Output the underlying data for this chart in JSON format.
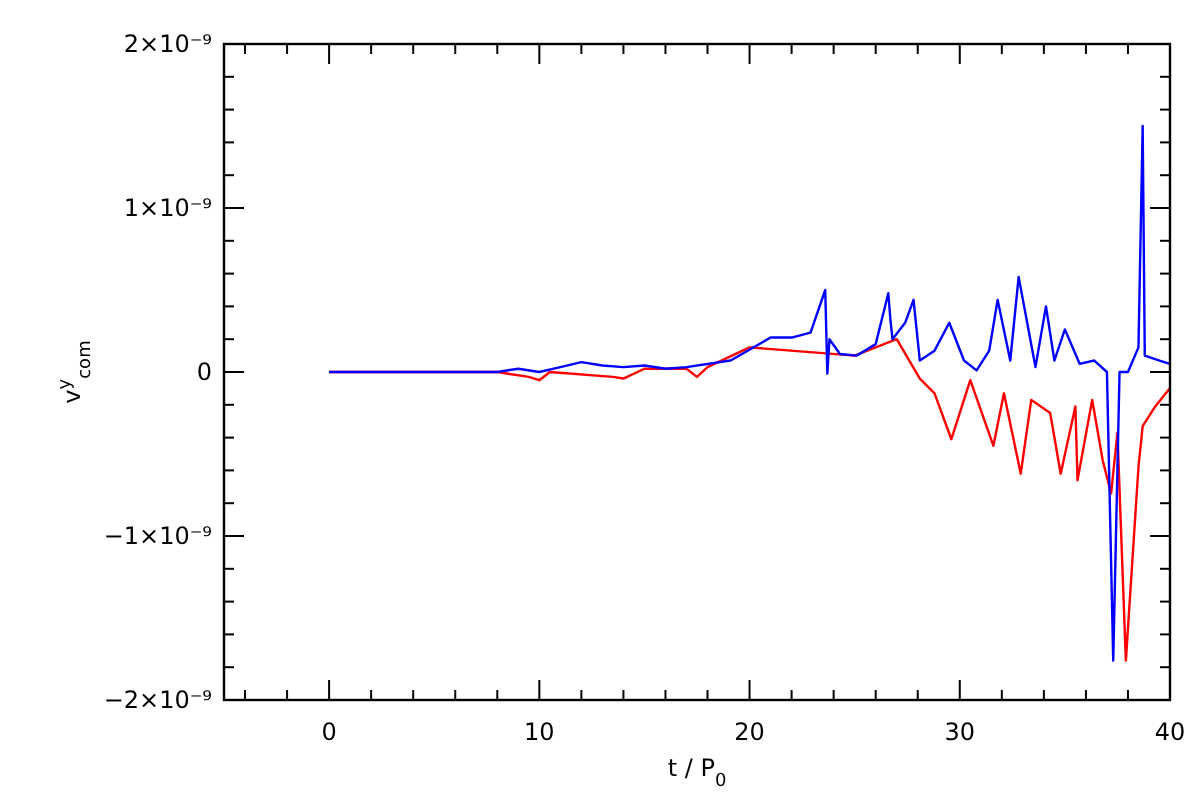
{
  "chart_data": {
    "type": "line",
    "xlabel": "t / P$_{0}$",
    "ylabel": "v$^{y}$$_{com}$",
    "xlim": [
      -5,
      40
    ],
    "ylim": [
      -2e-09,
      2e-09
    ],
    "xticks": [
      {
        "value": -4,
        "label": null
      },
      {
        "value": -2,
        "label": null
      },
      0,
      {
        "value": 2,
        "label": null
      },
      {
        "value": 4,
        "label": null
      },
      {
        "value": 6,
        "label": null
      },
      {
        "value": 8,
        "label": null
      },
      10,
      {
        "value": 12,
        "label": null
      },
      {
        "value": 14,
        "label": null
      },
      {
        "value": 16,
        "label": null
      },
      {
        "value": 18,
        "label": null
      },
      20,
      {
        "value": 22,
        "label": null
      },
      {
        "value": 24,
        "label": null
      },
      {
        "value": 26,
        "label": null
      },
      {
        "value": 28,
        "label": null
      },
      30,
      {
        "value": 32,
        "label": null
      },
      {
        "value": 34,
        "label": null
      },
      {
        "value": 36,
        "label": null
      },
      {
        "value": 38,
        "label": null
      },
      40
    ],
    "yticks": [
      {
        "value": -2e-09,
        "label": "−2×10⁻⁹"
      },
      {
        "value": -1.8e-09,
        "label": null
      },
      {
        "value": -1.6e-09,
        "label": null
      },
      {
        "value": -1.4e-09,
        "label": null
      },
      {
        "value": -1.2e-09,
        "label": null
      },
      {
        "value": -1e-09,
        "label": "−1×10⁻⁹"
      },
      {
        "value": -8e-10,
        "label": null
      },
      {
        "value": -6e-10,
        "label": null
      },
      {
        "value": -4e-10,
        "label": null
      },
      {
        "value": -2e-10,
        "label": null
      },
      0,
      {
        "value": 2e-10,
        "label": null
      },
      {
        "value": 4e-10,
        "label": null
      },
      {
        "value": 6e-10,
        "label": null
      },
      {
        "value": 8e-10,
        "label": null
      },
      {
        "value": 1e-09,
        "label": "1×10⁻⁹"
      },
      {
        "value": 1.2e-09,
        "label": null
      },
      {
        "value": 1.4e-09,
        "label": null
      },
      {
        "value": 1.6e-09,
        "label": null
      },
      {
        "value": 1.8e-09,
        "label": null
      },
      {
        "value": 2e-09,
        "label": "2×10⁻⁹"
      }
    ],
    "series": [
      {
        "color": "#ff0000",
        "x": [
          0,
          8,
          9.5,
          10,
          10.5,
          13.5,
          14,
          15,
          17,
          17.5,
          18,
          20,
          25,
          27,
          28.1,
          28.8,
          29.6,
          30.5,
          31.6,
          32.1,
          32.9,
          33.4,
          34.3,
          34.8,
          35.5,
          35.6,
          36.3,
          36.8,
          37.2,
          37.5,
          37.9,
          38.5,
          38.7,
          39.3,
          39.8,
          40
        ],
        "values": [
          0,
          0,
          -3e-11,
          -5e-11,
          0,
          -3e-11,
          -4e-11,
          2e-11,
          2e-11,
          -3e-11,
          3e-11,
          1.5e-10,
          1e-10,
          2e-10,
          -4e-11,
          -1.3e-10,
          -4.1e-10,
          -5e-11,
          -4.5e-10,
          -1.3e-10,
          -6.2e-10,
          -1.7e-10,
          -2.5e-10,
          -6.2e-10,
          -2.1e-10,
          -6.6e-10,
          -1.7e-10,
          -5.4e-10,
          -7.4e-10,
          -3.7e-10,
          -1.76e-09,
          -5.8e-10,
          -3.3e-10,
          -2.1e-10,
          -1.3e-10,
          -1e-10
        ]
      },
      {
        "color": "#0000ff",
        "x": [
          0,
          8,
          9,
          10,
          11,
          12,
          13,
          14,
          15,
          16,
          17,
          19.1,
          21,
          22,
          22.9,
          23.6,
          23.7,
          23.8,
          24.3,
          25.1,
          26,
          26.6,
          26.7,
          26.8,
          27.4,
          27.8,
          28.1,
          28.8,
          29.5,
          30.2,
          30.8,
          31.4,
          31.8,
          32.4,
          32.8,
          33.6,
          34.1,
          34.5,
          35,
          35.7,
          36.4,
          37,
          37.3,
          37.6,
          38,
          38.5,
          38.7,
          38.8,
          39.5,
          40
        ],
        "values": [
          0,
          0,
          2e-11,
          0,
          3e-11,
          6e-11,
          4e-11,
          3e-11,
          4e-11,
          2e-11,
          3e-11,
          7e-11,
          2.1e-10,
          2.1e-10,
          2.4e-10,
          5e-10,
          -1e-11,
          2e-10,
          1.1e-10,
          1e-10,
          1.7e-10,
          4.8e-10,
          3.2e-10,
          2e-10,
          3e-10,
          4.4e-10,
          7e-11,
          1.3e-10,
          3e-10,
          7e-11,
          1e-11,
          1.3e-10,
          4.4e-10,
          7e-11,
          5.8e-10,
          3e-11,
          4e-10,
          7e-11,
          2.6e-10,
          5e-11,
          7e-11,
          0,
          -1.76e-09,
          0,
          0,
          1.5e-10,
          1.5e-09,
          1e-10,
          7e-11,
          5e-11
        ]
      }
    ]
  }
}
